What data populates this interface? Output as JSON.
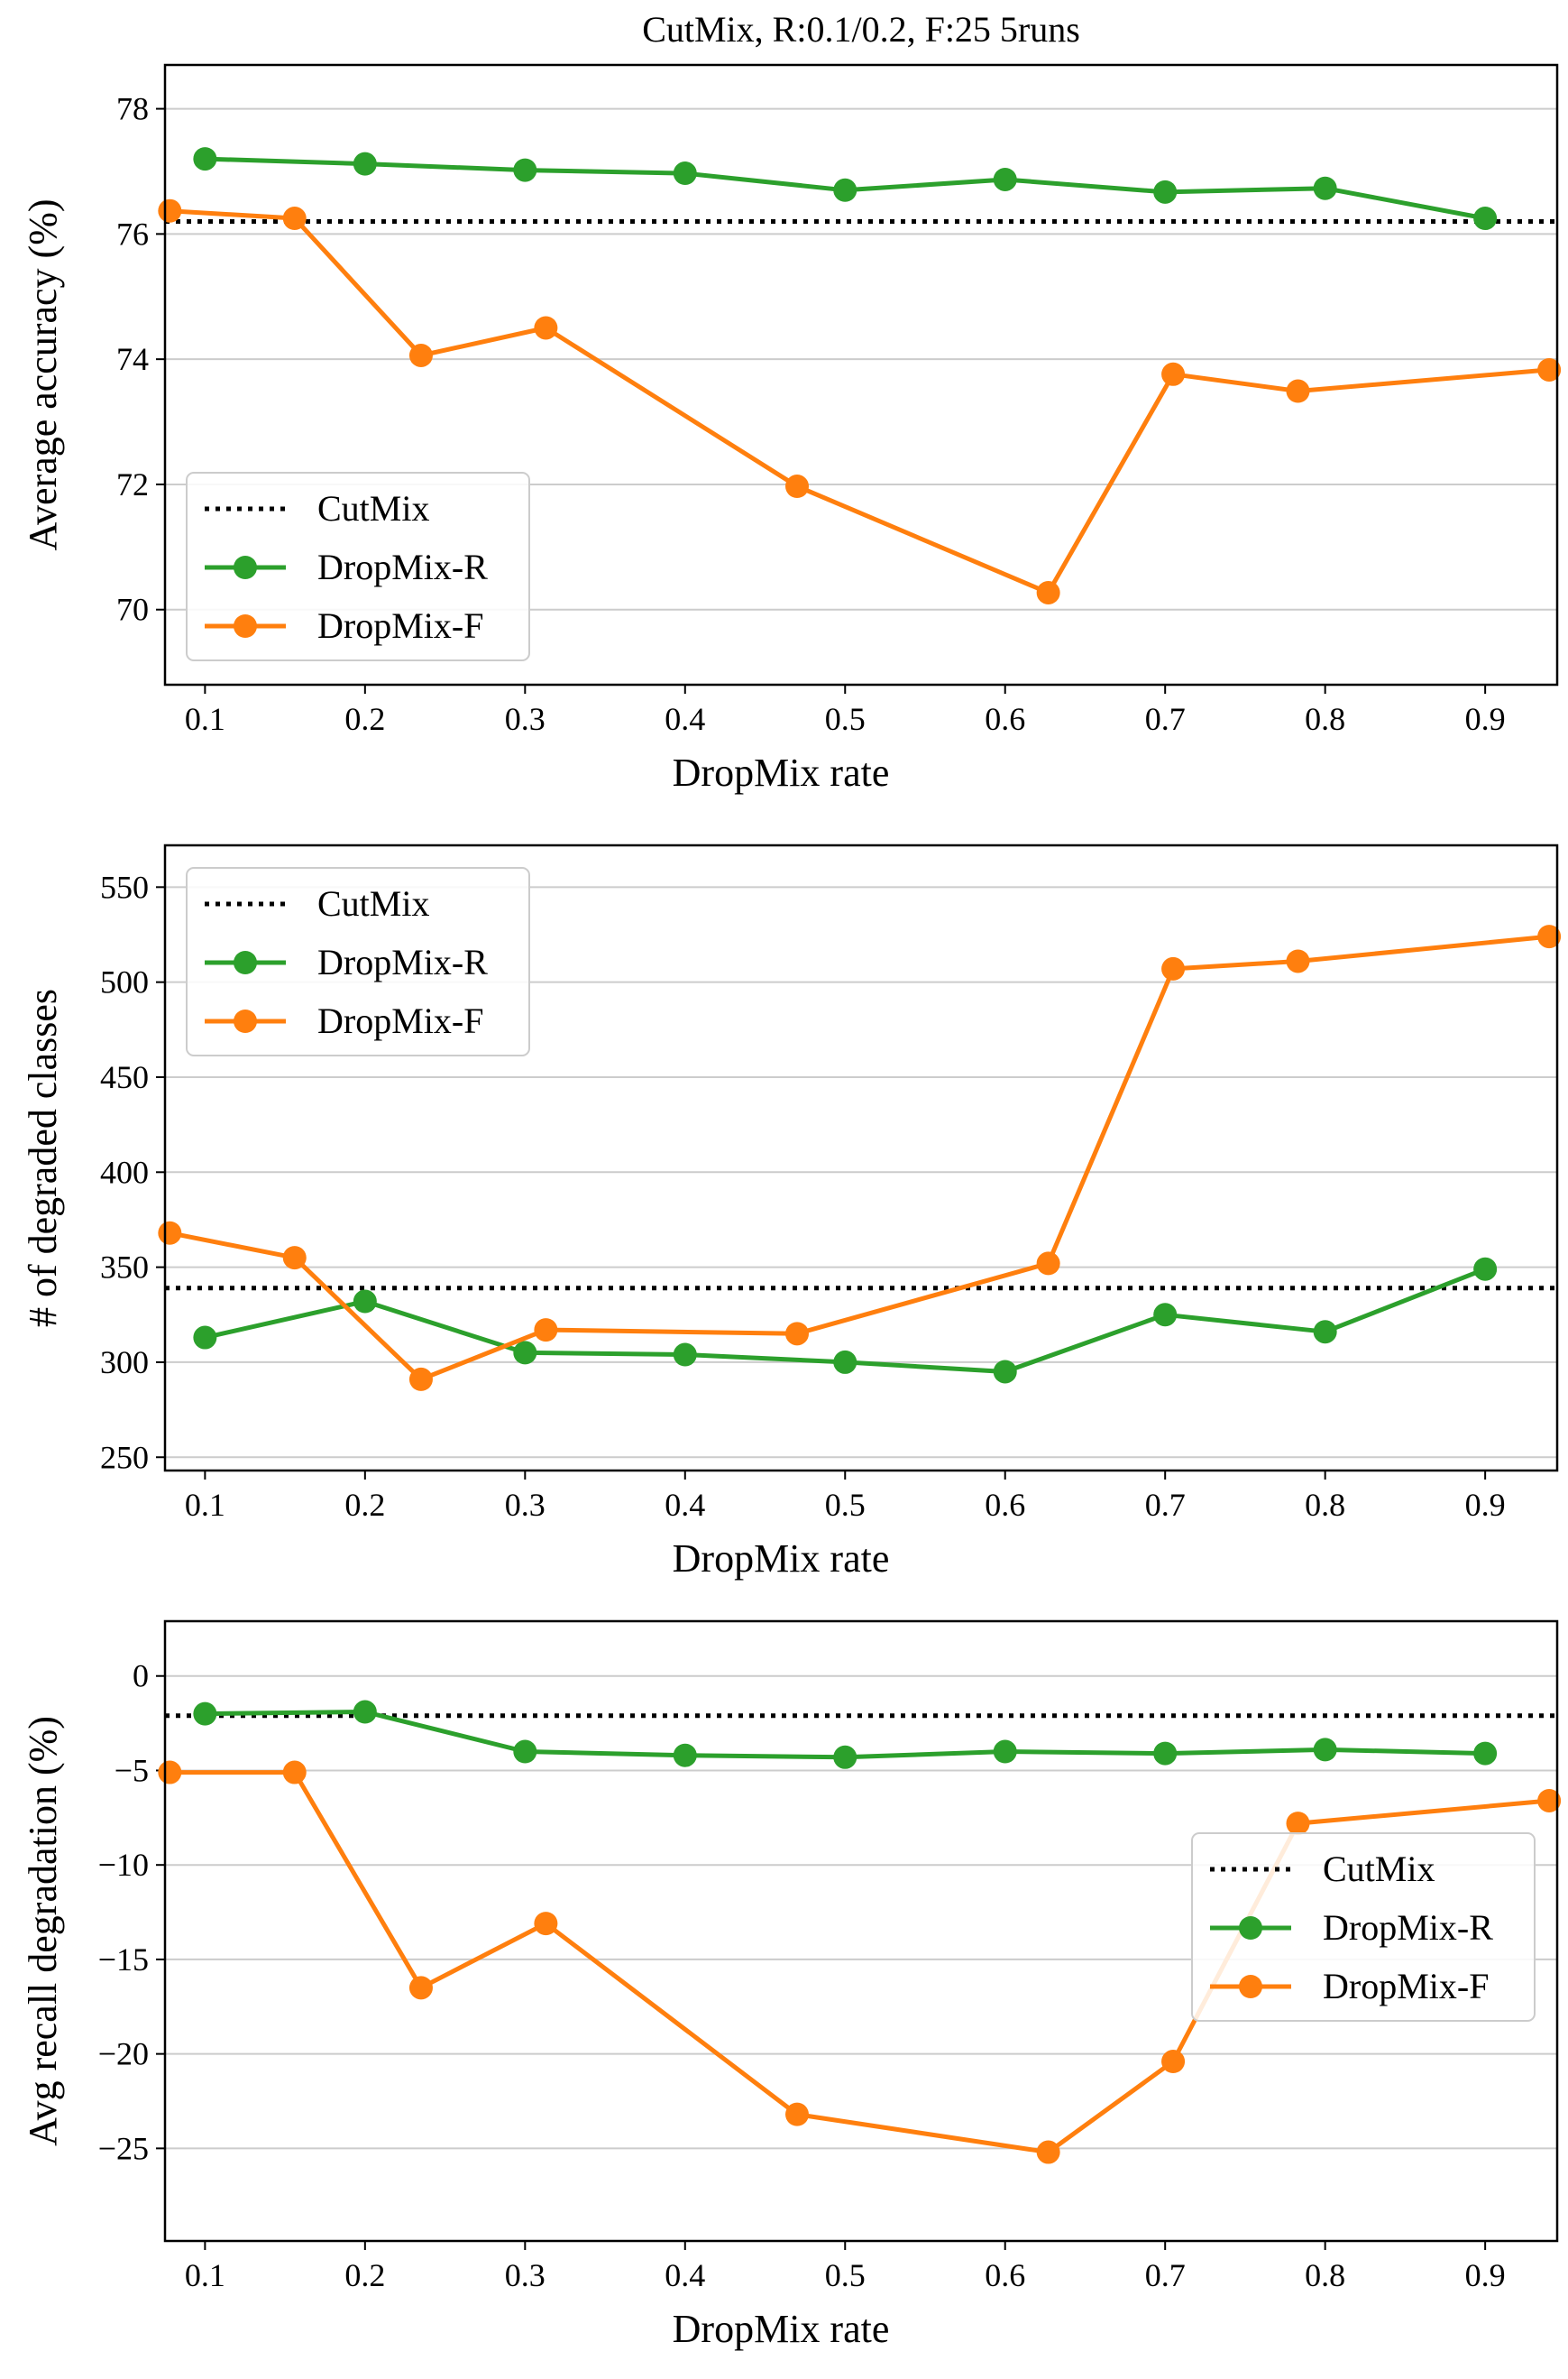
{
  "figure_title": "CutMix, R:0.1/0.2, F:25 5runs",
  "colors": {
    "cutmix": "#000000",
    "dropmix_r": "#2ca02c",
    "dropmix_f": "#ff7f0e",
    "grid": "#cccccc"
  },
  "chart_data": [
    {
      "type": "line",
      "title": "CutMix, R:0.1/0.2, F:25 5runs",
      "xlabel": "DropMix rate",
      "ylabel": "Average accuracy (%)",
      "xlim": [
        0.075,
        0.945
      ],
      "ylim": [
        68.8,
        78.7
      ],
      "xticks": [
        0.1,
        0.2,
        0.3,
        0.4,
        0.5,
        0.6,
        0.7,
        0.8,
        0.9
      ],
      "xtick_labels": [
        "0.1",
        "0.2",
        "0.3",
        "0.4",
        "0.5",
        "0.6",
        "0.7",
        "0.8",
        "0.9"
      ],
      "yticks": [
        70,
        72,
        74,
        76,
        78
      ],
      "ytick_labels": [
        "70",
        "72",
        "74",
        "76",
        "78"
      ],
      "grid": "horizontal",
      "legend_position": "lower-left",
      "baseline": {
        "name": "CutMix",
        "value": 76.2
      },
      "series": [
        {
          "name": "DropMix-R",
          "x": [
            0.1,
            0.2,
            0.3,
            0.4,
            0.5,
            0.6,
            0.7,
            0.8,
            0.9
          ],
          "y": [
            77.2,
            77.12,
            77.02,
            76.97,
            76.7,
            76.87,
            76.67,
            76.73,
            76.25
          ]
        },
        {
          "name": "DropMix-F",
          "x": [
            0.078,
            0.156,
            0.235,
            0.313,
            0.47,
            0.627,
            0.705,
            0.783,
            0.94
          ],
          "y": [
            76.37,
            76.25,
            74.06,
            74.5,
            71.97,
            70.27,
            73.76,
            73.49,
            73.83
          ]
        }
      ]
    },
    {
      "type": "line",
      "xlabel": "DropMix rate",
      "ylabel": "# of degraded classes",
      "xlim": [
        0.075,
        0.945
      ],
      "ylim": [
        243,
        572
      ],
      "xticks": [
        0.1,
        0.2,
        0.3,
        0.4,
        0.5,
        0.6,
        0.7,
        0.8,
        0.9
      ],
      "xtick_labels": [
        "0.1",
        "0.2",
        "0.3",
        "0.4",
        "0.5",
        "0.6",
        "0.7",
        "0.8",
        "0.9"
      ],
      "yticks": [
        250,
        300,
        350,
        400,
        450,
        500,
        550
      ],
      "ytick_labels": [
        "250",
        "300",
        "350",
        "400",
        "450",
        "500",
        "550"
      ],
      "grid": "horizontal",
      "legend_position": "upper-left",
      "baseline": {
        "name": "CutMix",
        "value": 339
      },
      "series": [
        {
          "name": "DropMix-R",
          "x": [
            0.1,
            0.2,
            0.3,
            0.4,
            0.5,
            0.6,
            0.7,
            0.8,
            0.9
          ],
          "y": [
            313,
            332,
            305,
            304,
            300,
            295,
            325,
            316,
            349
          ]
        },
        {
          "name": "DropMix-F",
          "x": [
            0.078,
            0.156,
            0.235,
            0.313,
            0.47,
            0.627,
            0.705,
            0.783,
            0.94
          ],
          "y": [
            368,
            355,
            291,
            317,
            315,
            352,
            507,
            511,
            524
          ]
        }
      ]
    },
    {
      "type": "line",
      "xlabel": "DropMix rate",
      "ylabel": "Avg recall degradation (%)",
      "xlim": [
        0.075,
        0.945
      ],
      "ylim": [
        -29.9,
        2.9
      ],
      "xticks": [
        0.1,
        0.2,
        0.3,
        0.4,
        0.5,
        0.6,
        0.7,
        0.8,
        0.9
      ],
      "xtick_labels": [
        "0.1",
        "0.2",
        "0.3",
        "0.4",
        "0.5",
        "0.6",
        "0.7",
        "0.8",
        "0.9"
      ],
      "yticks": [
        0,
        -5,
        -10,
        -15,
        -20,
        -25
      ],
      "ytick_labels": [
        "0",
        "−5",
        "−10",
        "−15",
        "−20",
        "−25"
      ],
      "grid": "horizontal",
      "legend_position": "center-right",
      "baseline": {
        "name": "CutMix",
        "value": -2.1
      },
      "series": [
        {
          "name": "DropMix-R",
          "x": [
            0.1,
            0.2,
            0.3,
            0.4,
            0.5,
            0.6,
            0.7,
            0.8,
            0.9
          ],
          "y": [
            -2.0,
            -1.9,
            -4.0,
            -4.2,
            -4.3,
            -4.0,
            -4.1,
            -3.9,
            -4.1
          ]
        },
        {
          "name": "DropMix-F",
          "x": [
            0.078,
            0.156,
            0.235,
            0.313,
            0.47,
            0.627,
            0.705,
            0.783,
            0.94
          ],
          "y": [
            -5.1,
            -5.1,
            -16.5,
            -13.1,
            -23.2,
            -25.2,
            -20.4,
            -7.8,
            -6.6
          ]
        }
      ]
    }
  ]
}
